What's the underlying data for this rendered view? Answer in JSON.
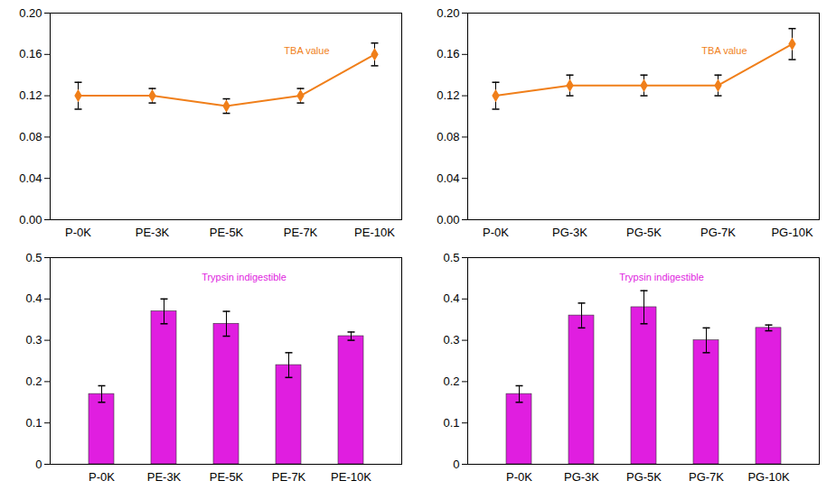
{
  "chart_data": [
    {
      "type": "line",
      "annotation": "TBA value",
      "categories": [
        "P-0K",
        "PE-3K",
        "PE-5K",
        "PE-7K",
        "PE-10K"
      ],
      "values": [
        0.12,
        0.12,
        0.11,
        0.12,
        0.16
      ],
      "errors": [
        0.013,
        0.007,
        0.007,
        0.007,
        0.011
      ],
      "color": "#f07f1a",
      "marker": "diamond",
      "ylim": [
        0,
        0.2
      ],
      "yticks": [
        {
          "value": 0,
          "label": "0.00"
        },
        0.04,
        0.08,
        0.12,
        0.16,
        {
          "value": 0.2,
          "label": "0.20"
        }
      ]
    },
    {
      "type": "line",
      "annotation": "TBA value",
      "categories": [
        "P-0K",
        "PG-3K",
        "PG-5K",
        "PG-7K",
        "PG-10K"
      ],
      "values": [
        0.12,
        0.13,
        0.13,
        0.13,
        0.17
      ],
      "errors": [
        0.013,
        0.01,
        0.01,
        0.01,
        0.015
      ],
      "color": "#f07f1a",
      "marker": "diamond",
      "ylim": [
        0,
        0.2
      ],
      "yticks": [
        {
          "value": 0,
          "label": "0.00"
        },
        0.04,
        0.08,
        0.12,
        0.16,
        {
          "value": 0.2,
          "label": "0.20"
        }
      ]
    },
    {
      "type": "bar",
      "annotation": "Trypsin indigestible",
      "categories": [
        "P-0K",
        "PE-3K",
        "PE-5K",
        "PE-7K",
        "PE-10K"
      ],
      "values": [
        0.17,
        0.37,
        0.34,
        0.24,
        0.31
      ],
      "errors": [
        0.02,
        0.03,
        0.03,
        0.03,
        0.01
      ],
      "color": "#e01ee0",
      "ylim": [
        0,
        0.5
      ],
      "yticks": [
        0,
        0.1,
        0.2,
        0.3,
        0.4,
        0.5
      ]
    },
    {
      "type": "bar",
      "annotation": "Trypsin indigestible",
      "categories": [
        "P-0K",
        "PG-3K",
        "PG-5K",
        "PG-7K",
        "PG-10K"
      ],
      "values": [
        0.17,
        0.36,
        0.38,
        0.3,
        0.33
      ],
      "errors": [
        0.02,
        0.03,
        0.04,
        0.03,
        0.007
      ],
      "color": "#e01ee0",
      "ylim": [
        0,
        0.5
      ],
      "yticks": [
        0,
        0.1,
        0.2,
        0.3,
        0.4,
        0.5
      ]
    }
  ]
}
